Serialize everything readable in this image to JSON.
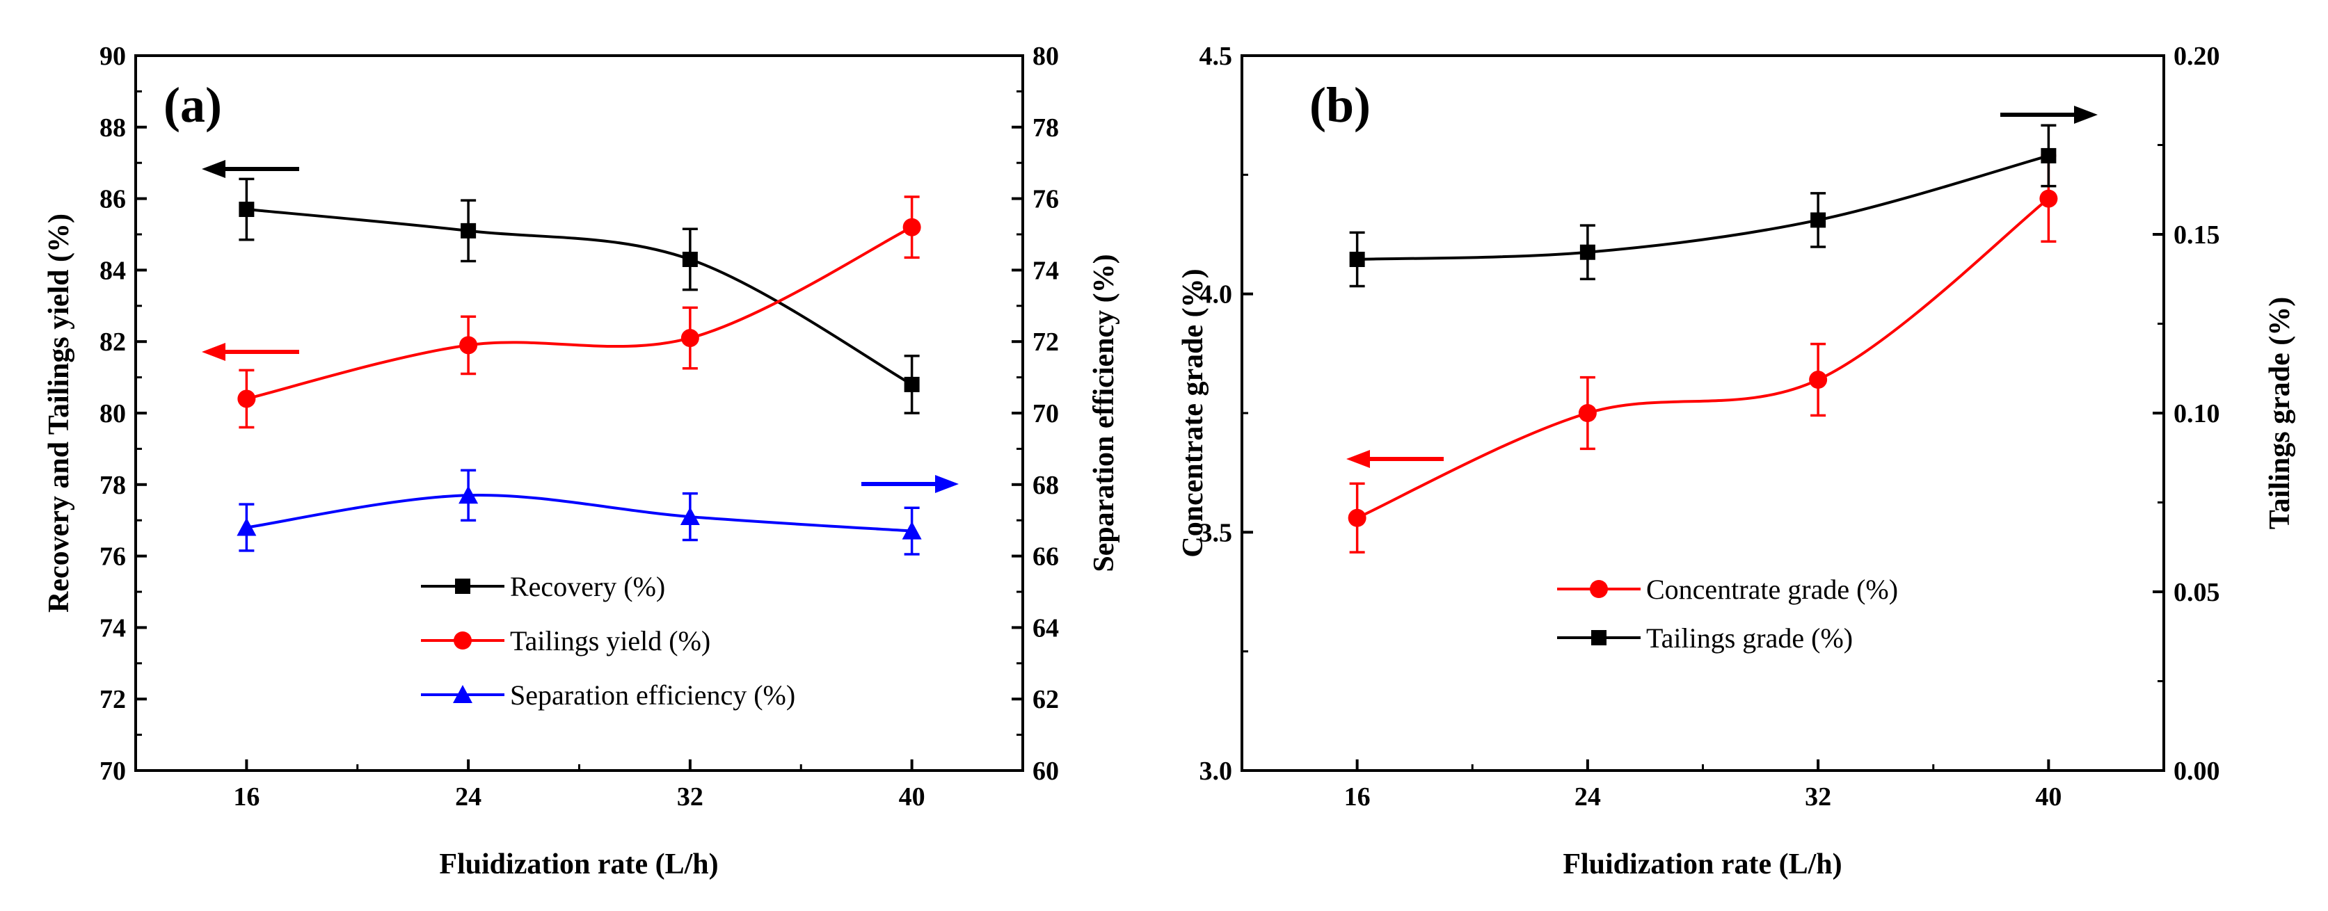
{
  "chart_data": [
    {
      "panel_label": "(a)",
      "type": "line",
      "xlabel": "Fluidization rate (L/h)",
      "ylabel_left": "Recovery and Tailings yield (%)",
      "ylabel_right": "Separation efficiency (%)",
      "x": [
        16,
        24,
        32,
        40
      ],
      "x_tick_labels": [
        "16",
        "24",
        "32",
        "40"
      ],
      "xlim": [
        12,
        44
      ],
      "ylim_left": [
        70,
        90
      ],
      "y_left_ticks": [
        "70",
        "72",
        "74",
        "76",
        "78",
        "80",
        "82",
        "84",
        "86",
        "88",
        "90"
      ],
      "ylim_right": [
        60,
        80
      ],
      "y_right_ticks": [
        "60",
        "62",
        "64",
        "66",
        "68",
        "70",
        "72",
        "74",
        "76",
        "78",
        "80"
      ],
      "legend_position": "bottom-center",
      "series": [
        {
          "name": "Recovery (%)",
          "axis": "left",
          "color": "#000000",
          "marker": "square",
          "values": [
            85.7,
            85.1,
            84.3,
            80.8
          ],
          "errors": [
            0.85,
            0.85,
            0.85,
            0.8
          ]
        },
        {
          "name": "Tailings yield (%)",
          "axis": "left",
          "color": "#ff0000",
          "marker": "circle",
          "values": [
            80.4,
            81.9,
            82.1,
            85.2
          ],
          "errors": [
            0.8,
            0.8,
            0.85,
            0.85
          ]
        },
        {
          "name": "Separation efficiency (%)",
          "axis": "right",
          "color": "#0000ff",
          "marker": "triangle",
          "values": [
            66.8,
            67.7,
            67.1,
            66.7
          ],
          "errors": [
            0.65,
            0.7,
            0.65,
            0.65
          ]
        }
      ],
      "arrows": [
        {
          "series": "Recovery (%)",
          "direction": "left",
          "color": "#000000"
        },
        {
          "series": "Tailings yield (%)",
          "direction": "left",
          "color": "#ff0000"
        },
        {
          "series": "Separation efficiency (%)",
          "direction": "right",
          "color": "#0000ff"
        }
      ]
    },
    {
      "panel_label": "(b)",
      "type": "line",
      "xlabel": "Fluidization rate (L/h)",
      "ylabel_left": "Concentrate grade (%)",
      "ylabel_right": "Tailings grade (%)",
      "x": [
        16,
        24,
        32,
        40
      ],
      "x_tick_labels": [
        "16",
        "24",
        "32",
        "40"
      ],
      "xlim": [
        12,
        44
      ],
      "ylim_left": [
        3.0,
        4.5
      ],
      "y_left_ticks": [
        "3.0",
        "3.5",
        "4.0",
        "4.5"
      ],
      "ylim_right": [
        0.0,
        0.2
      ],
      "y_right_ticks": [
        "0.00",
        "0.05",
        "0.10",
        "0.15",
        "0.20"
      ],
      "legend_position": "bottom-center",
      "series": [
        {
          "name": "Concentrate grade (%)",
          "axis": "left",
          "color": "#ff0000",
          "marker": "circle",
          "values": [
            3.53,
            3.75,
            3.82,
            4.2
          ],
          "errors": [
            0.072,
            0.075,
            0.075,
            0.09
          ]
        },
        {
          "name": "Tailings grade (%)",
          "axis": "right",
          "color": "#000000",
          "marker": "square",
          "values": [
            0.143,
            0.145,
            0.154,
            0.172
          ],
          "errors": [
            0.0075,
            0.0075,
            0.0075,
            0.0085
          ]
        }
      ],
      "arrows": [
        {
          "series": "Concentrate grade (%)",
          "direction": "left",
          "color": "#ff0000"
        },
        {
          "series": "Tailings grade (%)",
          "direction": "right",
          "color": "#000000"
        }
      ]
    }
  ]
}
